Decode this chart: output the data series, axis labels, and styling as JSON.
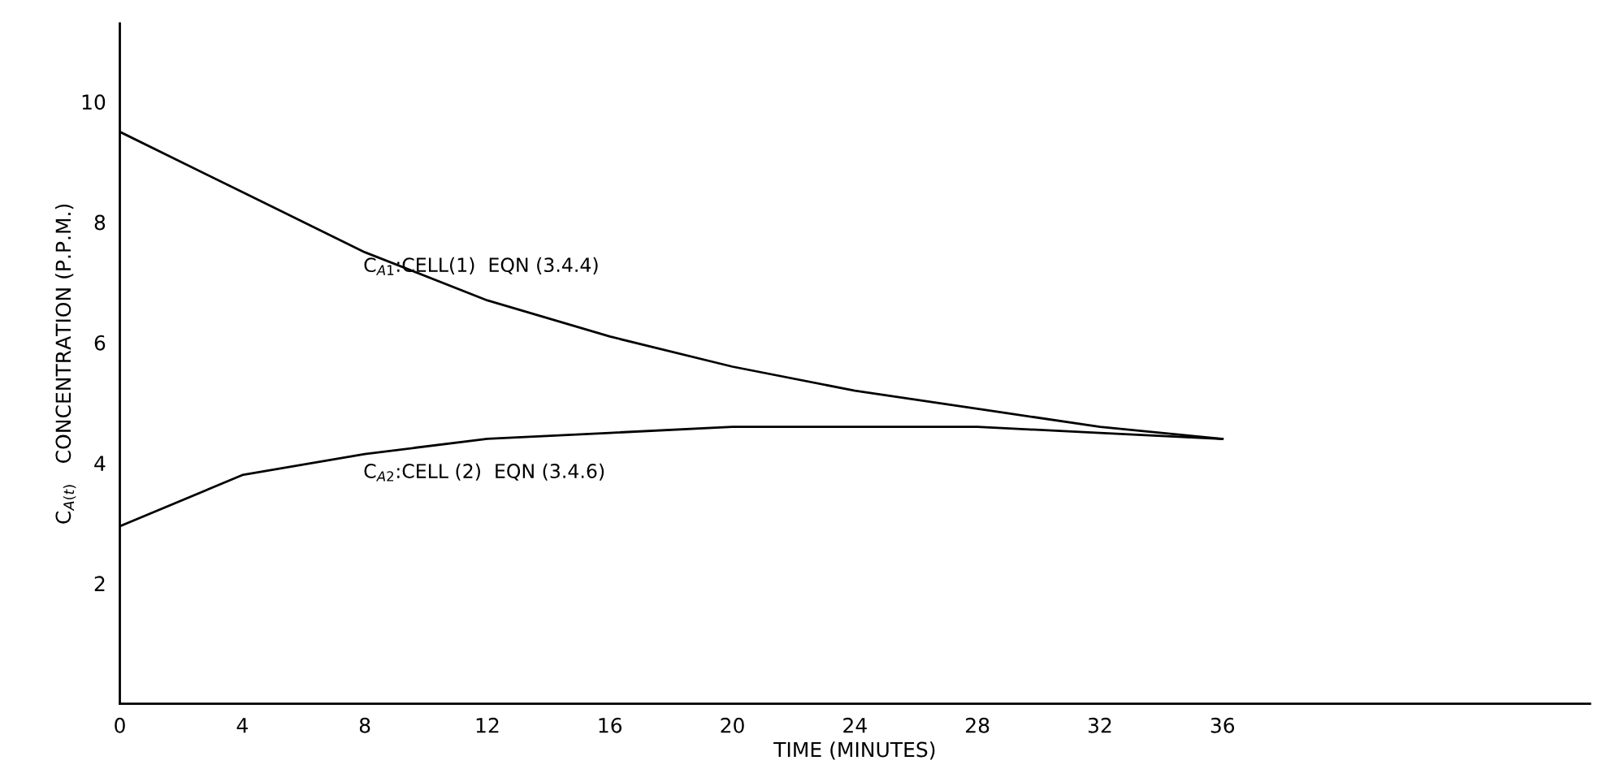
{
  "chart_data": {
    "type": "line",
    "xlabel": "TIME (MINUTES)",
    "ylabel": "C$_{A(t)}$   CONCENTRATION (P.P.M.)",
    "x": [
      0,
      4,
      8,
      12,
      16,
      20,
      24,
      28,
      32,
      36
    ],
    "series": [
      {
        "name": "C$_{A1}$:CELL(1)  EQN (3.4.4)",
        "color": "#000000",
        "values": [
          9.5,
          8.5,
          7.5,
          6.7,
          6.1,
          5.6,
          5.2,
          4.9,
          4.6,
          4.4
        ]
      },
      {
        "name": "C$_{A2}$:CELL (2)  EQN (3.4.6)",
        "color": "#000000",
        "values": [
          2.95,
          3.8,
          4.15,
          4.4,
          4.5,
          4.6,
          4.6,
          4.6,
          4.5,
          4.4
        ]
      }
    ],
    "xlim": [
      0,
      48
    ],
    "ylim": [
      0,
      11.3
    ],
    "xticks": [
      0,
      4,
      8,
      12,
      16,
      20,
      24,
      28,
      32,
      36
    ],
    "yticks": [
      2,
      4,
      6,
      8,
      10
    ],
    "grid": false,
    "legend": false,
    "marker": "none",
    "line_style": "solid"
  }
}
